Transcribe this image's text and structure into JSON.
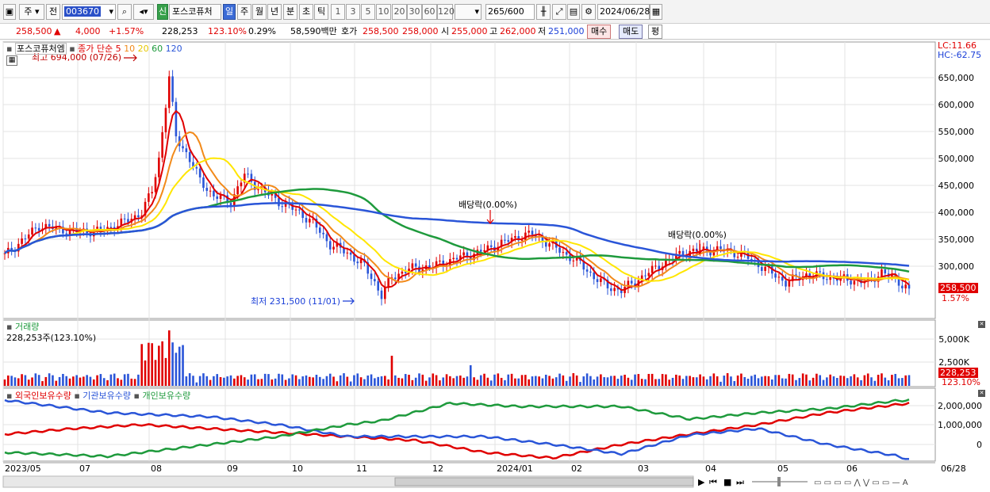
{
  "toolbar": {
    "market": "주",
    "type": "전",
    "code": "003670",
    "name": "포스코퓨처",
    "new_badge": "신",
    "periods": [
      "일",
      "주",
      "월",
      "년",
      "분",
      "초",
      "틱"
    ],
    "selected_period": "일",
    "intervals": [
      "1",
      "3",
      "5",
      "10",
      "20",
      "30",
      "60",
      "120"
    ],
    "count": "265",
    "count_total": "/600",
    "date": "2024/06/28"
  },
  "quote": {
    "price": "258,500",
    "change_arrow": "▲",
    "change": "4,000",
    "change_pct": "+1.57%",
    "volume": "228,253",
    "volume_ratio": "123.10%",
    "turnover": "0.29%",
    "amount": "58,590백만",
    "ask_label": "호가",
    "ask1": "258,500",
    "ask2": "258,000",
    "open_label": "시",
    "open": "255,000",
    "high_label": "고",
    "high": "262,000",
    "low_label": "저",
    "low": "251,000",
    "buy": "매수",
    "sell": "매도",
    "avg": "평"
  },
  "price_panel": {
    "title": "포스코퓨처엠",
    "ma_label": "종가 단순",
    "ma_periods": [
      "5",
      "10",
      "20",
      "60",
      "120"
    ],
    "ma_colors": [
      "#e00000",
      "#f28a1a",
      "#ffe600",
      "#1e9a3c",
      "#2a55d8"
    ],
    "lc": "LC:11.66",
    "hc": "HC:-62.75",
    "high_note": "최고 694,000 (07/26)",
    "low_note": "최저 231,500 (11/01)",
    "dividend1": "배당락(0.00%)",
    "dividend2": "배당락(0.00%)",
    "last_price": "258,500",
    "last_pct": "1.57%",
    "y_ticks": [
      "650,000",
      "600,000",
      "550,000",
      "500,000",
      "450,000",
      "400,000",
      "350,000",
      "300,000"
    ]
  },
  "volume_panel": {
    "title": "거래량",
    "info": "228,253주(123.10%)",
    "y_ticks": [
      "5,000K",
      "2,500K"
    ],
    "last_value": "228,253",
    "last_pct": "123.10%"
  },
  "holdings_panel": {
    "legend": [
      "외국인보유수량",
      "기관보유수량",
      "개인보유수량"
    ],
    "colors": [
      "#e00000",
      "#2a55d8",
      "#1e9a3c"
    ],
    "y_ticks": [
      "2,000,000",
      "1,000,000",
      "0"
    ]
  },
  "x_axis": {
    "labels": [
      "2023/05",
      "07",
      "08",
      "09",
      "10",
      "11",
      "12",
      "2024/01",
      "02",
      "03",
      "04",
      "05",
      "06",
      "06/28"
    ]
  }
}
